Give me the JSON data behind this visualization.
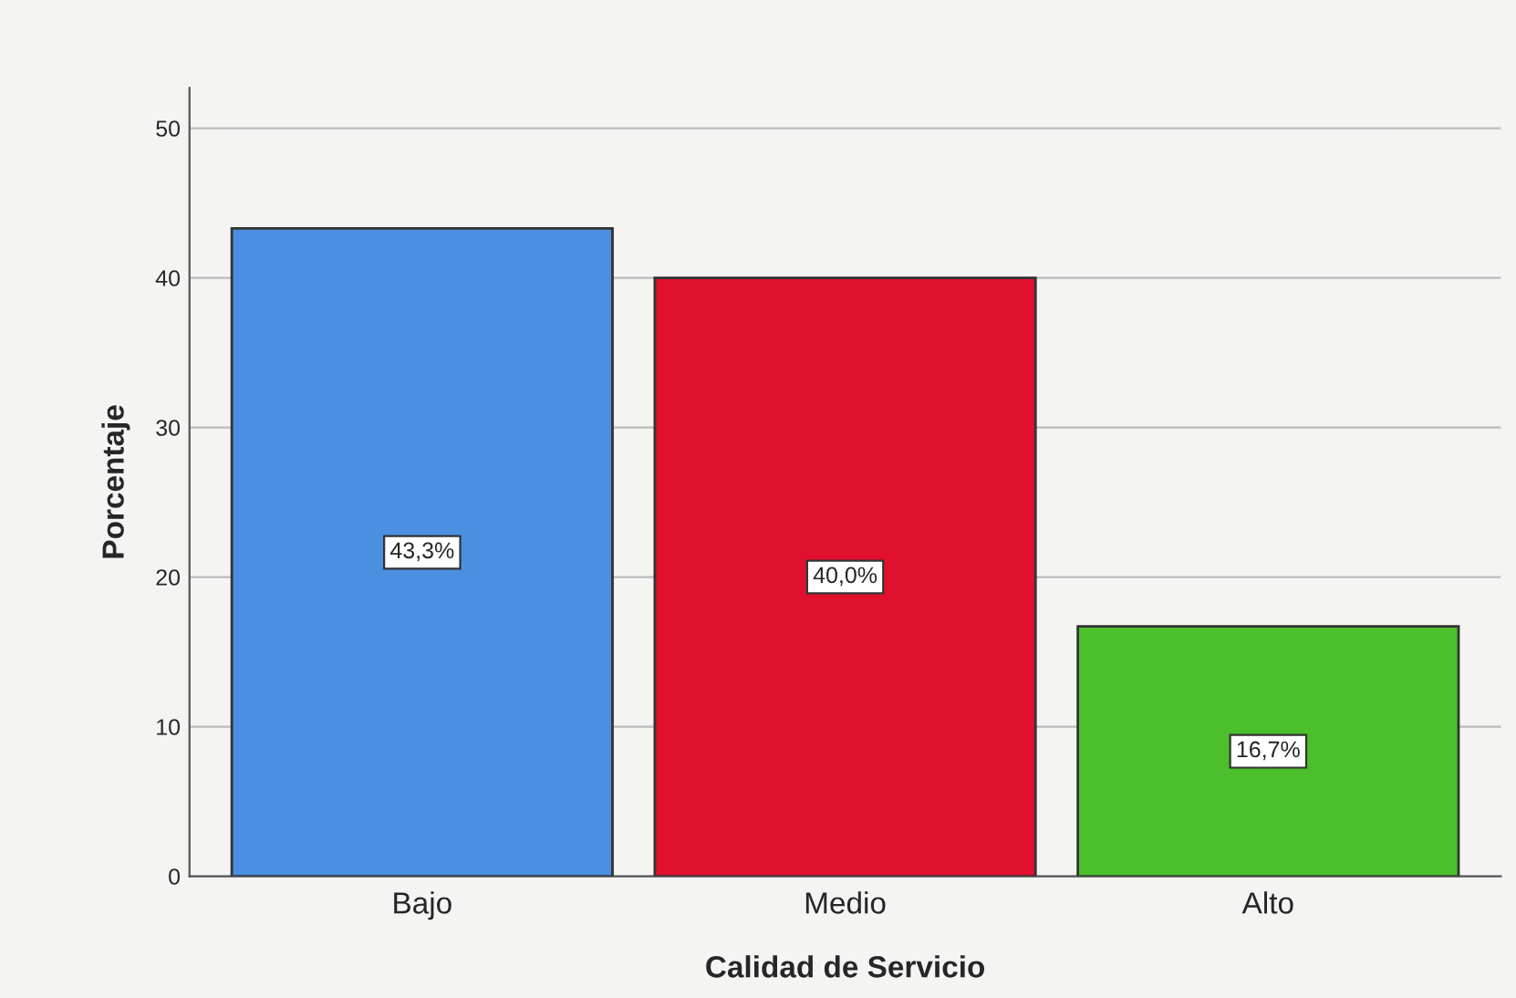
{
  "chart_data": {
    "type": "bar",
    "xlabel": "Calidad de Servicio",
    "ylabel": "Porcentaje",
    "categories": [
      "Bajo",
      "Medio",
      "Alto"
    ],
    "values": [
      43.3,
      40.0,
      16.7
    ],
    "value_labels": [
      "43,3%",
      "40,0%",
      "16,7%"
    ],
    "colors": [
      "#4a8fe0",
      "#e0102e",
      "#4cbf2c"
    ],
    "ylim": [
      0,
      52.7
    ],
    "yticks": [
      0,
      10,
      20,
      30,
      40,
      50
    ],
    "grid": "y"
  }
}
